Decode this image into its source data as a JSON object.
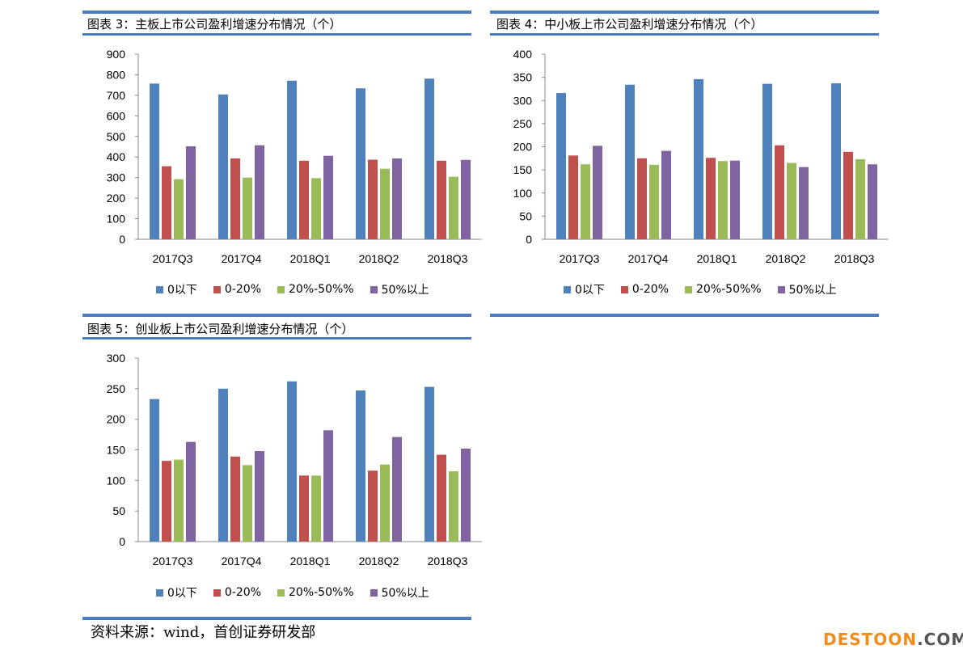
{
  "colors": {
    "rule": "#4a7cc0",
    "series": [
      "#4f81bd",
      "#c0504d",
      "#9bbb59",
      "#8064a2"
    ]
  },
  "source_text": "资料来源：wind，首创证券研发部",
  "watermark": {
    "part1": "DESTOON",
    "part2": ".COM"
  },
  "chart_data": [
    {
      "type": "bar",
      "title": "图表 3：主板上市公司盈利增速分布情况（个）",
      "categories": [
        "2017Q3",
        "2017Q4",
        "2018Q1",
        "2018Q2",
        "2018Q3"
      ],
      "ylim": [
        0,
        900
      ],
      "yticks": [
        0,
        100,
        200,
        300,
        400,
        500,
        600,
        700,
        800,
        900
      ],
      "legend_position": "bottom",
      "grid": false,
      "series": [
        {
          "name": "0以下",
          "values": [
            757,
            704,
            771,
            734,
            781
          ]
        },
        {
          "name": "0-20%",
          "values": [
            355,
            393,
            382,
            387,
            382
          ]
        },
        {
          "name": "20%-50%%",
          "values": [
            292,
            300,
            297,
            343,
            304
          ]
        },
        {
          "name": "50%以上",
          "values": [
            452,
            457,
            406,
            393,
            386
          ]
        }
      ]
    },
    {
      "type": "bar",
      "title": "图表 4：中小板上市公司盈利增速分布情况（个）",
      "categories": [
        "2017Q3",
        "2017Q4",
        "2018Q1",
        "2018Q2",
        "2018Q3"
      ],
      "ylim": [
        0,
        400
      ],
      "yticks": [
        0,
        50,
        100,
        150,
        200,
        250,
        300,
        350,
        400
      ],
      "legend_position": "bottom",
      "grid": false,
      "series": [
        {
          "name": "0以下",
          "values": [
            316,
            334,
            346,
            336,
            337
          ]
        },
        {
          "name": "0-20%",
          "values": [
            181,
            175,
            176,
            203,
            189
          ]
        },
        {
          "name": "20%-50%%",
          "values": [
            162,
            161,
            169,
            165,
            173
          ]
        },
        {
          "name": "50%以上",
          "values": [
            202,
            191,
            170,
            156,
            162
          ]
        }
      ]
    },
    {
      "type": "bar",
      "title": "图表 5：创业板上市公司盈利增速分布情况（个）",
      "categories": [
        "2017Q3",
        "2017Q4",
        "2018Q1",
        "2018Q2",
        "2018Q3"
      ],
      "ylim": [
        0,
        300
      ],
      "yticks": [
        0,
        50,
        100,
        150,
        200,
        250,
        300
      ],
      "legend_position": "bottom",
      "grid": false,
      "series": [
        {
          "name": "0以下",
          "values": [
            233,
            250,
            262,
            247,
            253
          ]
        },
        {
          "name": "0-20%",
          "values": [
            132,
            139,
            108,
            116,
            142
          ]
        },
        {
          "name": "20%-50%%",
          "values": [
            134,
            125,
            108,
            126,
            115
          ]
        },
        {
          "name": "50%以上",
          "values": [
            163,
            148,
            182,
            171,
            152
          ]
        }
      ]
    }
  ]
}
